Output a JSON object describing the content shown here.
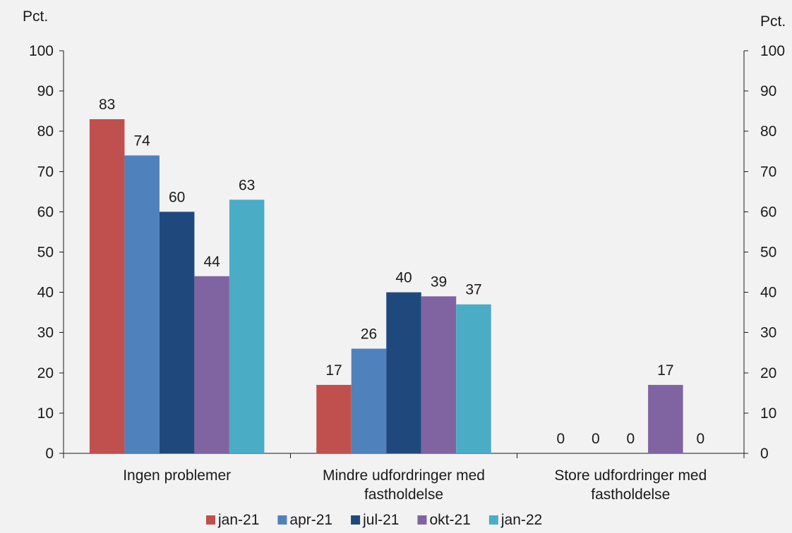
{
  "chart_data": {
    "type": "bar",
    "y_unit_left": "Pct.",
    "y_unit_right": "Pct.",
    "ylim": [
      0,
      100
    ],
    "yticks": [
      0,
      10,
      20,
      30,
      40,
      50,
      60,
      70,
      80,
      90,
      100
    ],
    "grid": false,
    "legend_position": "bottom",
    "categories": [
      [
        "Ingen problemer"
      ],
      [
        "Mindre udfordringer med",
        "fastholdelse"
      ],
      [
        "Store udfordringer med",
        "fastholdelse"
      ]
    ],
    "series": [
      {
        "name": "jan-21",
        "color": "#c0504d",
        "values": [
          83,
          17,
          0
        ]
      },
      {
        "name": "apr-21",
        "color": "#4f81bd",
        "values": [
          74,
          26,
          0
        ]
      },
      {
        "name": "jul-21",
        "color": "#1f497d",
        "values": [
          60,
          40,
          0
        ]
      },
      {
        "name": "okt-21",
        "color": "#8064a2",
        "values": [
          44,
          39,
          17
        ]
      },
      {
        "name": "jan-22",
        "color": "#4bacc6",
        "values": [
          63,
          37,
          0
        ]
      }
    ]
  }
}
